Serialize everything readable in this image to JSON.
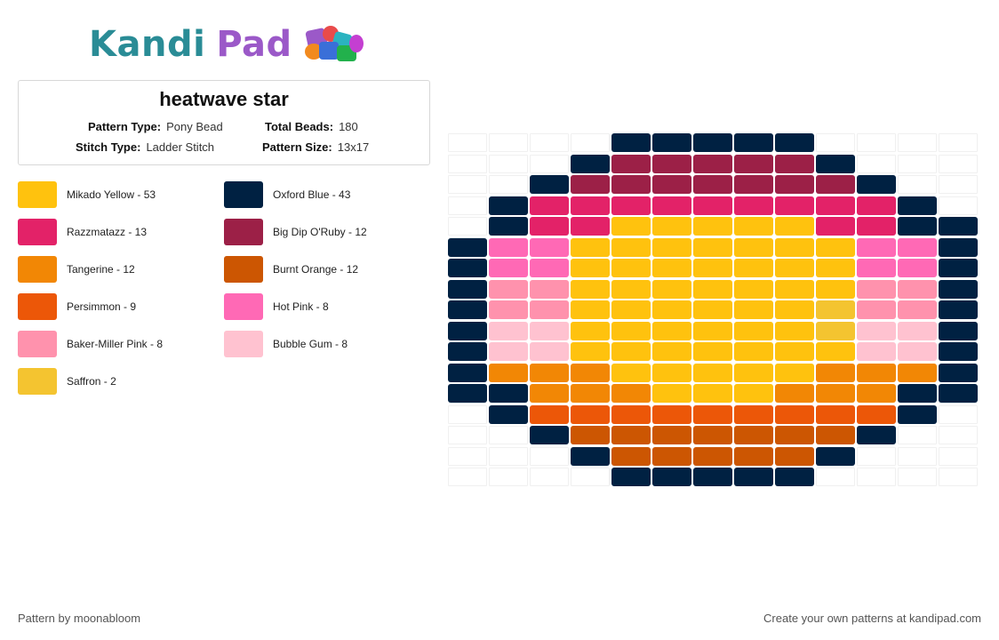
{
  "logo": {
    "kandi": "Kandi",
    "pad": "Pad"
  },
  "pattern": {
    "title": "heatwave star",
    "type_label": "Pattern Type:",
    "type_value": "Pony Bead",
    "beads_label": "Total Beads:",
    "beads_value": "180",
    "stitch_label": "Stitch Type:",
    "stitch_value": "Ladder Stitch",
    "size_label": "Pattern Size:",
    "size_value": "13x17"
  },
  "legend": [
    {
      "label": "Mikado Yellow - 53",
      "color": "#FFC20E"
    },
    {
      "label": "Oxford Blue - 43",
      "color": "#002142"
    },
    {
      "label": "Razzmatazz - 13",
      "color": "#E32268"
    },
    {
      "label": "Big Dip O'Ruby - 12",
      "color": "#9C2047"
    },
    {
      "label": "Tangerine - 12",
      "color": "#F28705"
    },
    {
      "label": "Burnt Orange - 12",
      "color": "#CC5602"
    },
    {
      "label": "Persimmon - 9",
      "color": "#EC5708"
    },
    {
      "label": "Hot Pink - 8",
      "color": "#FF69B5"
    },
    {
      "label": "Baker-Miller Pink - 8",
      "color": "#FF92AD"
    },
    {
      "label": "Bubble Gum - 8",
      "color": "#FFC2D0"
    },
    {
      "label": "Saffron - 2",
      "color": "#F4C430"
    }
  ],
  "palette": {
    "Y": "#FFC20E",
    "N": "#002142",
    "R": "#E32268",
    "D": "#9C2047",
    "T": "#F28705",
    "B": "#CC5602",
    "P": "#EC5708",
    "H": "#FF69B5",
    "K": "#FF92AD",
    "G": "#FFC2D0",
    "S": "#F4C430"
  },
  "pattern_grid": [
    "....NNNNN....",
    "...NDDDDDN...",
    "..NDDDDDDDN..",
    ".NRRRRRRRRRN.",
    ".NRRYYYYYRRNN",
    "NHHYYYYYYYHHN",
    "NHHYYYYYYYHHN",
    "NKKYYYYYYYKKN",
    "NKKYYYYYYSKKN",
    "NGGYYYYYYSGGN",
    "NGGYYYYYYYGGN",
    "NTTTYYYYYTTTN",
    "NNTTTYYYTTTNN",
    ".NPPPPPPPPPN.",
    "..NBBBBBBBN..",
    "...NBBBBBN...",
    "....NNNNN...."
  ],
  "footer": {
    "left": "Pattern by moonabloom",
    "right": "Create your own patterns at kandipad.com"
  }
}
